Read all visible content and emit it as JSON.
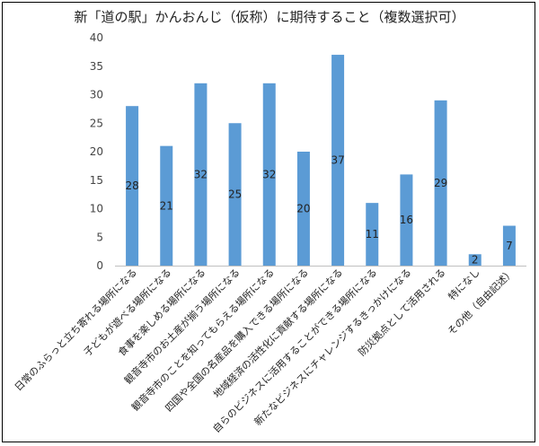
{
  "chart_data": {
    "type": "bar",
    "title": "新「道の駅」かんおんじ（仮称）に期待すること（複数選択可）",
    "xlabel": "",
    "ylabel": "",
    "ylim": [
      0,
      40
    ],
    "yticks": [
      0,
      5,
      10,
      15,
      20,
      25,
      30,
      35,
      40
    ],
    "grid": false,
    "legend": "none",
    "bar_color": "#5b9bd5",
    "categories": [
      "日常のふらっと立ち寄れる場所になる",
      "子どもが遊べる場所になる",
      "食事を楽しめる場所になる",
      "観音寺市のお土産が揃う場所になる",
      "観音寺市のことを知ってもらえる場所になる",
      "四国や全国の名産品を購入できる場所になる",
      "地域経済の活性化に貢献する場所になる",
      "自らのビジネスに活用することができる場所になる",
      "新たなビジネスにチャレンジするきっかけになる",
      "防災拠点として活用される",
      "特になし",
      "その他（自由記述）"
    ],
    "values": [
      28,
      21,
      32,
      25,
      32,
      20,
      37,
      11,
      16,
      29,
      2,
      7
    ]
  }
}
